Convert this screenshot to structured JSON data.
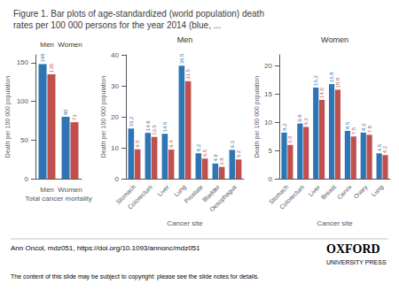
{
  "title": "Figure 1. Bar plots of age-standardized (world population) death\nrates per 100 000 persons for the year 2014 (blue, ...",
  "annotations": [
    "Ann Oncol, mdz051, https://doi.org/10.1093/annonc/mdz051",
    "The content of this slide may be subject to copyright: please see the slide notes for details.",
    "OXFORD",
    "UNIVERSITY PRESS"
  ],
  "chart_data": [
    {
      "type": "bar",
      "xlabel": "Total cancer mortality",
      "ylabel": "Death per 100 000 population",
      "categories": [
        "Men",
        "Women"
      ],
      "annotations": [
        "Men",
        "Women"
      ],
      "series": [
        {
          "color": "#2E75B6",
          "values": [
            148,
            80
          ]
        },
        {
          "color": "#C0504D",
          "values": [
            135,
            73
          ]
        }
      ],
      "ylim": [
        0,
        160
      ],
      "yticks": [
        0,
        50,
        100,
        150
      ],
      "data_labels": true,
      "grid": false
    },
    {
      "type": "bar",
      "title": "Men",
      "xlabel": "Cancer site",
      "ylabel": "Death per 100 000 population",
      "categories": [
        "Stomach",
        "Colorectum",
        "Liver",
        "Lung",
        "Prostate",
        "Bladder",
        "Oesophagus"
      ],
      "series": [
        {
          "color": "#2E75B6",
          "values": [
            16.2,
            14.8,
            14.5,
            36.5,
            8.2,
            4.9,
            9.3
          ]
        },
        {
          "color": "#C0504D",
          "values": [
            9.5,
            13.5,
            9.4,
            31.5,
            6.5,
            3.8,
            6.2
          ]
        }
      ],
      "ylim": [
        0,
        40
      ],
      "yticks": [
        0,
        10,
        20,
        30,
        40
      ],
      "data_labels": true,
      "grid": false
    },
    {
      "type": "bar",
      "title": "Women",
      "xlabel": "Cancer site",
      "ylabel": "Death per 100 000 population",
      "categories": [
        "Stomach",
        "Colorectum",
        "Liver",
        "Breast",
        "Cervix",
        "Ovary",
        "Lung"
      ],
      "series": [
        {
          "color": "#2E75B6",
          "values": [
            8.2,
            9.8,
            16.2,
            16.8,
            8.5,
            8.2,
            4.5
          ]
        },
        {
          "color": "#C0504D",
          "values": [
            6.0,
            9.2,
            14.0,
            15.8,
            7.5,
            7.8,
            4.2
          ],
          "value_labels": [
            "6.0",
            "9.2",
            "14.0",
            "15.8",
            "7.5",
            "7.8",
            "4.2"
          ]
        }
      ],
      "ylim": [
        0,
        22
      ],
      "yticks": [
        0,
        5,
        10,
        15,
        20
      ],
      "data_labels": true,
      "grid": false
    }
  ]
}
